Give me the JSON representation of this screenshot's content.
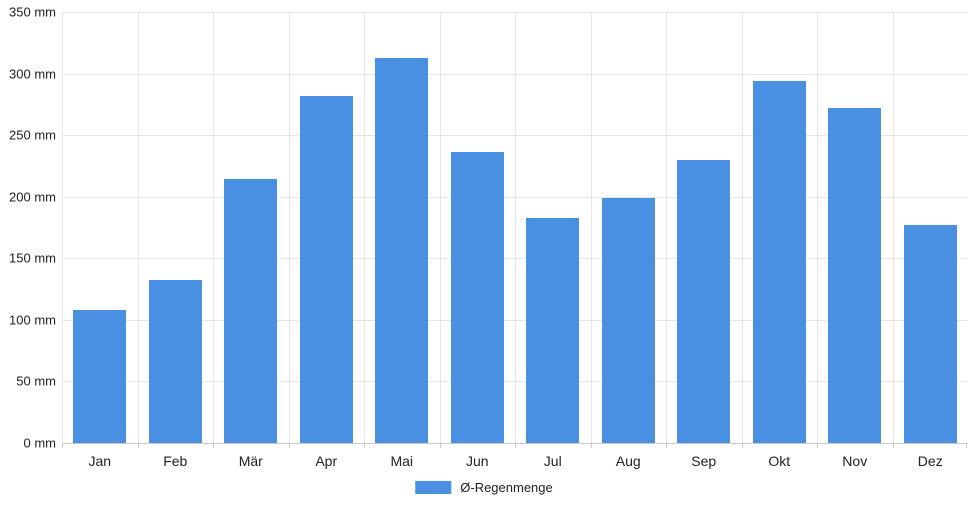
{
  "chart_data": {
    "type": "bar",
    "title": "",
    "xlabel": "",
    "ylabel": "",
    "unit": "mm",
    "categories": [
      "Jan",
      "Feb",
      "Mär",
      "Apr",
      "Mai",
      "Jun",
      "Jul",
      "Aug",
      "Sep",
      "Okt",
      "Nov",
      "Dez"
    ],
    "series": [
      {
        "name": "Ø-Regenmenge",
        "values": [
          108,
          132,
          214,
          282,
          313,
          236,
          183,
          199,
          230,
          294,
          272,
          177
        ]
      }
    ],
    "ylim": [
      0,
      350
    ],
    "ytick_step": 50,
    "ytick_labels": [
      "0 mm",
      "50 mm",
      "100 mm",
      "150 mm",
      "200 mm",
      "250 mm",
      "300 mm",
      "350 mm"
    ],
    "grid": true,
    "legend_position": "bottom"
  },
  "legend": {
    "label": "Ø-Regenmenge"
  },
  "colors": {
    "bar": "#4a90e2",
    "grid": "#e6e6e6",
    "axis": "#c9c9c9",
    "text": "#222222"
  }
}
